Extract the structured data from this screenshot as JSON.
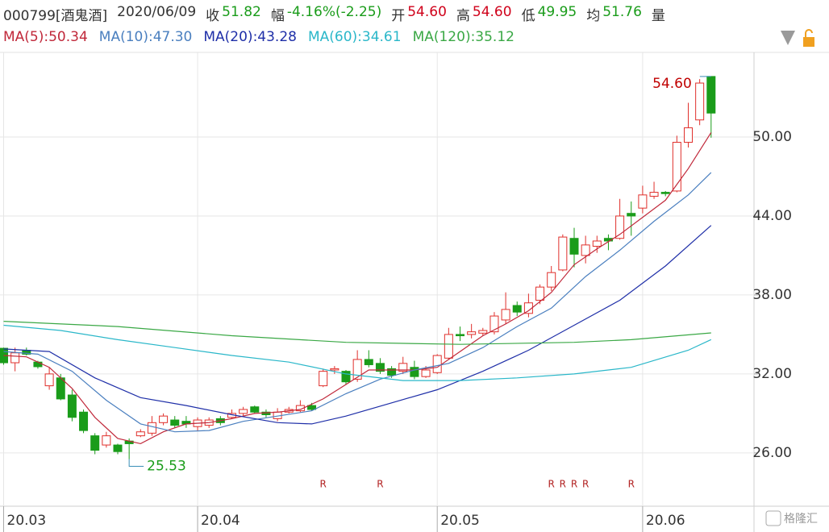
{
  "chart_data": {
    "type": "candlestick",
    "title": "000799[酒鬼酒]",
    "date": "2020/06/09",
    "quotes": [
      {
        "label": "收",
        "value": "51.82",
        "color": "#1a9c1a"
      },
      {
        "label": "幅",
        "value": "-4.16%(-2.25)",
        "color": "#1a9c1a"
      },
      {
        "label": "开",
        "value": "54.60",
        "color": "#d0021b"
      },
      {
        "label": "高",
        "value": "54.60",
        "color": "#d0021b"
      },
      {
        "label": "低",
        "value": "49.95",
        "color": "#1a9c1a"
      },
      {
        "label": "均",
        "value": "51.76",
        "color": "#1a9c1a"
      },
      {
        "label": "量",
        "value": null,
        "color": "#333333"
      }
    ],
    "categories": [
      "20.03",
      null,
      null,
      null,
      null,
      null,
      null,
      null,
      null,
      null,
      null,
      null,
      null,
      null,
      null,
      null,
      null,
      "20.04",
      null,
      null,
      null,
      null,
      null,
      null,
      null,
      null,
      null,
      null,
      null,
      null,
      null,
      null,
      null,
      null,
      null,
      null,
      null,
      null,
      "20.05",
      null,
      null,
      null,
      null,
      null,
      null,
      null,
      null,
      null,
      null,
      null,
      null,
      null,
      null,
      null,
      null,
      null,
      "20.06",
      null,
      null,
      null,
      null,
      null,
      null
    ],
    "open": [
      33.95,
      32.85,
      33.8,
      32.9,
      31.1,
      31.7,
      30.4,
      29.1,
      27.3,
      26.6,
      26.6,
      26.9,
      27.3,
      27.5,
      28.3,
      28.5,
      28.4,
      28.0,
      28.1,
      28.6,
      28.7,
      29.0,
      29.5,
      29.1,
      28.6,
      29.1,
      29.2,
      29.6,
      31.1,
      32.3,
      32.2,
      31.6,
      33.1,
      32.8,
      32.4,
      32.2,
      32.5,
      31.8,
      32.1,
      33.2,
      35.0,
      35.0,
      35.1,
      35.2,
      36.1,
      37.2,
      36.6,
      37.6,
      38.6,
      39.9,
      42.3,
      41.0,
      41.7,
      42.3,
      42.3,
      44.2,
      44.6,
      45.5,
      45.8,
      45.9,
      49.6,
      51.3,
      54.6
    ],
    "high": [
      34.0,
      34.0,
      34.0,
      33.0,
      32.5,
      32.0,
      30.8,
      29.3,
      27.5,
      27.6,
      26.7,
      27.1,
      27.8,
      28.8,
      29.0,
      28.8,
      28.8,
      28.7,
      28.7,
      28.8,
      29.3,
      29.5,
      29.6,
      29.3,
      29.4,
      29.5,
      30.0,
      29.8,
      32.4,
      32.6,
      32.3,
      33.8,
      33.8,
      33.2,
      32.6,
      33.3,
      33.0,
      32.6,
      33.5,
      35.5,
      35.6,
      35.8,
      35.5,
      36.7,
      38.2,
      37.5,
      38.1,
      38.8,
      40.2,
      42.6,
      43.1,
      42.5,
      42.5,
      42.6,
      45.3,
      45.1,
      46.3,
      46.6,
      45.9,
      50.1,
      52.6,
      54.4,
      54.6
    ],
    "low": [
      32.7,
      32.2,
      33.4,
      32.4,
      30.8,
      30.0,
      28.4,
      27.5,
      25.9,
      26.4,
      25.9,
      25.53,
      27.2,
      27.3,
      28.1,
      27.9,
      27.9,
      27.7,
      27.9,
      28.1,
      28.6,
      28.8,
      29.0,
      28.7,
      28.4,
      29.0,
      29.1,
      29.2,
      31.0,
      32.0,
      31.2,
      31.4,
      32.5,
      32.0,
      31.7,
      32.0,
      31.6,
      31.7,
      32.0,
      33.1,
      34.5,
      34.7,
      34.9,
      35.0,
      35.8,
      36.4,
      36.3,
      37.3,
      38.3,
      39.8,
      40.1,
      40.4,
      41.2,
      41.4,
      42.2,
      42.5,
      44.2,
      45.3,
      45.5,
      45.8,
      49.2,
      50.9,
      49.95
    ],
    "close": [
      32.85,
      33.6,
      33.5,
      32.55,
      32.0,
      30.1,
      28.7,
      27.7,
      26.2,
      27.3,
      26.1,
      26.7,
      27.6,
      28.3,
      28.8,
      28.1,
      28.2,
      28.5,
      28.5,
      28.3,
      29.0,
      29.3,
      29.1,
      28.9,
      29.1,
      29.3,
      29.6,
      29.3,
      32.2,
      32.4,
      31.4,
      33.1,
      32.7,
      32.2,
      31.9,
      32.8,
      31.8,
      32.3,
      33.4,
      35.0,
      34.9,
      35.2,
      35.3,
      36.4,
      36.9,
      36.7,
      37.4,
      38.6,
      39.7,
      42.4,
      41.1,
      41.8,
      42.1,
      42.1,
      44.0,
      44.0,
      45.6,
      45.8,
      45.7,
      49.6,
      50.7,
      54.1,
      51.82
    ],
    "up_color": "#e0302c",
    "down_color": "#1a9c1a",
    "series": [
      {
        "name": "MA(5):50.34",
        "color": "#c0283a",
        "x": [
          0,
          2,
          4,
          6,
          8,
          10,
          12,
          14,
          16,
          18,
          20,
          22,
          24,
          26,
          28,
          30,
          32,
          34,
          36,
          38,
          40,
          42,
          44,
          46,
          48,
          50,
          52,
          54,
          56,
          58,
          60,
          62
        ],
        "values": [
          33.4,
          33.3,
          32.5,
          30.9,
          28.7,
          27.1,
          26.7,
          27.6,
          28.2,
          28.3,
          28.6,
          29.0,
          29.1,
          29.3,
          30.1,
          31.2,
          32.3,
          32.3,
          32.3,
          32.5,
          33.7,
          34.9,
          35.8,
          36.8,
          38.2,
          40.3,
          41.5,
          42.6,
          43.9,
          45.2,
          47.6,
          50.34
        ]
      },
      {
        "name": "MA(10):47.30",
        "color": "#4a7fbf",
        "x": [
          0,
          3,
          6,
          9,
          12,
          15,
          18,
          21,
          24,
          27,
          30,
          33,
          36,
          39,
          42,
          45,
          48,
          51,
          54,
          57,
          60,
          62
        ],
        "values": [
          33.7,
          33.5,
          32.2,
          30.0,
          28.2,
          27.6,
          27.7,
          28.4,
          28.8,
          29.2,
          30.5,
          31.6,
          32.3,
          32.8,
          34.0,
          35.6,
          37.0,
          39.4,
          41.4,
          43.6,
          45.6,
          47.3
        ]
      },
      {
        "name": "MA(20):43.28",
        "color": "#1f2fa8",
        "x": [
          0,
          4,
          8,
          12,
          16,
          20,
          24,
          27,
          30,
          34,
          38,
          42,
          46,
          50,
          54,
          58,
          62
        ],
        "values": [
          33.9,
          33.7,
          31.7,
          30.2,
          29.6,
          28.9,
          28.3,
          28.2,
          28.8,
          29.8,
          30.8,
          32.2,
          33.8,
          35.7,
          37.6,
          40.2,
          43.28
        ]
      },
      {
        "name": "MA(60):34.61",
        "color": "#2ab7c9",
        "x": [
          0,
          5,
          10,
          15,
          20,
          25,
          30,
          35,
          40,
          45,
          50,
          55,
          60,
          62
        ],
        "values": [
          35.7,
          35.3,
          34.6,
          34.0,
          33.4,
          32.9,
          32.0,
          31.5,
          31.5,
          31.7,
          32.0,
          32.5,
          33.8,
          34.61
        ]
      },
      {
        "name": "MA(120):35.12",
        "color": "#3aa845",
        "x": [
          0,
          10,
          20,
          30,
          40,
          50,
          55,
          62
        ],
        "values": [
          36.0,
          35.6,
          34.9,
          34.4,
          34.25,
          34.4,
          34.6,
          35.12
        ]
      }
    ],
    "signals": [
      {
        "x": 28,
        "label": "R"
      },
      {
        "x": 33,
        "label": "R"
      },
      {
        "x": 48,
        "label": "R"
      },
      {
        "x": 49,
        "label": "R"
      },
      {
        "x": 50,
        "label": "R"
      },
      {
        "x": 51,
        "label": "R"
      },
      {
        "x": 55,
        "label": "R"
      }
    ],
    "annotations": [
      {
        "x": 62,
        "value": 54.6,
        "label": "54.60",
        "color": "#c00000"
      },
      {
        "x": 11,
        "value": 25.53,
        "label": "25.53",
        "color": "#1a9c1a"
      }
    ],
    "ylim": [
      21.95,
      56.43
    ],
    "yticks": [
      {
        "value": 26,
        "label": "26.00"
      },
      {
        "value": 32,
        "label": "32.00"
      },
      {
        "value": 38,
        "label": "38.00"
      },
      {
        "value": 44,
        "label": "44.00"
      },
      {
        "value": 50,
        "label": "50.00"
      }
    ],
    "grid": true,
    "watermark": "格隆汇"
  }
}
